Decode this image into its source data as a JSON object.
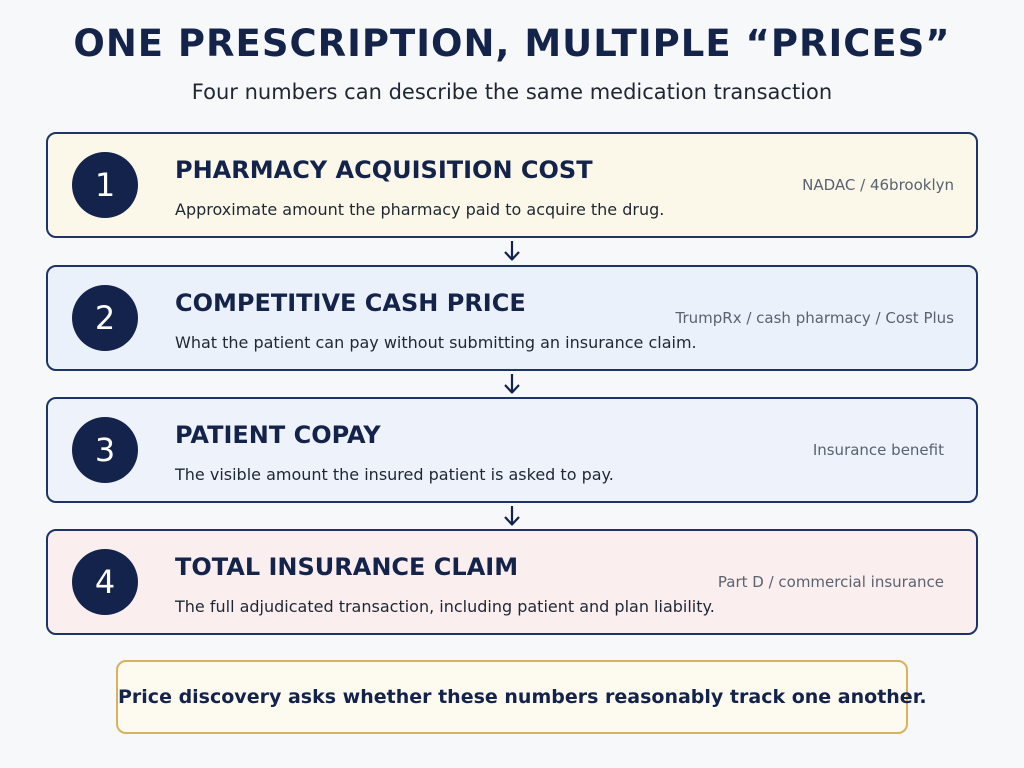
{
  "title": "ONE PRESCRIPTION, MULTIPLE “PRICES”",
  "subtitle": "Four numbers can describe the same medication transaction",
  "steps": [
    {
      "number": "1",
      "heading": "PHARMACY ACQUISITION COST",
      "description": "Approximate amount the pharmacy paid to acquire the drug.",
      "source": "NADAC / 46brooklyn",
      "background": "#fbf7e9"
    },
    {
      "number": "2",
      "heading": "COMPETITIVE CASH PRICE",
      "description": "What the patient can pay without submitting an insurance claim.",
      "source": "TrumpRx / cash pharmacy / Cost Plus",
      "background": "#ebf1fa"
    },
    {
      "number": "3",
      "heading": "PATIENT COPAY",
      "description": "The visible amount the insured patient is asked to pay.",
      "source": "Insurance benefit",
      "background": "#eef2fb"
    },
    {
      "number": "4",
      "heading": "TOTAL INSURANCE CLAIM",
      "description": "The full adjudicated transaction, including patient and plan liability.",
      "source": "Part D / commercial insurance",
      "background": "#faeeee"
    }
  ],
  "callout": "Price discovery asks whether these numbers reasonably track one another.",
  "colors": {
    "navy": "#13234c",
    "border": "#1e3468",
    "callout_border": "#d9b25e"
  }
}
